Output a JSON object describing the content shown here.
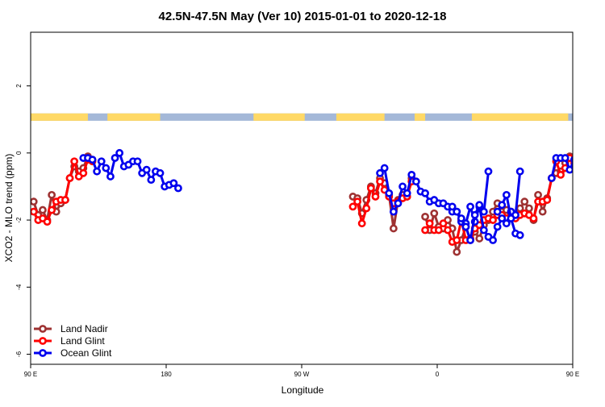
{
  "chart_data": {
    "type": "line",
    "title": "42.5N-47.5N May (Ver 10)   2015-01-01 to 2020-12-18",
    "xlabel": "Longitude",
    "ylabel": "XCO2 - MLO trend (ppm)",
    "xlim": [
      90,
      450
    ],
    "ylim": [
      -6.3,
      3.6
    ],
    "x_ticks": [
      {
        "value": 90,
        "label": "90 E"
      },
      {
        "value": 180,
        "label": "180"
      },
      {
        "value": 270,
        "label": "90 W"
      },
      {
        "value": 360,
        "label": "0"
      },
      {
        "value": 450,
        "label": "90 E"
      }
    ],
    "y_ticks": [
      {
        "value": -6,
        "label": "-6"
      },
      {
        "value": -4,
        "label": "-4"
      },
      {
        "value": -2,
        "label": "-2"
      },
      {
        "value": 0,
        "label": "0"
      },
      {
        "value": 2,
        "label": "2"
      }
    ],
    "legend_position": "bottom-left",
    "series": [
      {
        "name": "Land Nadir",
        "color": "#9e3232",
        "segments": [
          [
            [
              92,
              -1.45
            ],
            [
              95,
              -1.85
            ],
            [
              98,
              -1.7
            ],
            [
              101,
              -2.0
            ],
            [
              104,
              -1.25
            ],
            [
              107,
              -1.75
            ],
            [
              110,
              -1.5
            ],
            [
              113,
              -1.4
            ],
            [
              116,
              -0.75
            ],
            [
              119,
              -0.4
            ],
            [
              122,
              -0.55
            ],
            [
              125,
              -0.45
            ],
            [
              128,
              -0.1
            ],
            [
              131,
              -0.2
            ]
          ],
          [
            [
              304,
              -1.3
            ],
            [
              307,
              -1.35
            ],
            [
              310,
              -1.8
            ],
            [
              313,
              -1.4
            ],
            [
              316,
              -1.0
            ],
            [
              319,
              -1.2
            ],
            [
              322,
              -0.75
            ],
            [
              325,
              -0.9
            ],
            [
              328,
              -1.25
            ],
            [
              331,
              -2.25
            ],
            [
              334,
              -1.4
            ],
            [
              337,
              -1.25
            ],
            [
              340,
              -1.3
            ],
            [
              343,
              -0.75
            ]
          ],
          [
            [
              352,
              -1.9
            ],
            [
              355,
              -2.3
            ],
            [
              358,
              -1.8
            ],
            [
              361,
              -2.2
            ],
            [
              364,
              -2.25
            ],
            [
              367,
              -2.0
            ],
            [
              370,
              -2.25
            ],
            [
              373,
              -2.95
            ],
            [
              376,
              -2.6
            ],
            [
              379,
              -2.2
            ],
            [
              382,
              -2.6
            ],
            [
              385,
              -2.35
            ],
            [
              388,
              -2.55
            ],
            [
              391,
              -2.15
            ],
            [
              394,
              -2.0
            ],
            [
              397,
              -1.75
            ],
            [
              400,
              -1.5
            ],
            [
              403,
              -1.75
            ],
            [
              406,
              -1.7
            ],
            [
              409,
              -1.75
            ],
            [
              412,
              -1.85
            ],
            [
              415,
              -1.65
            ],
            [
              418,
              -1.45
            ],
            [
              421,
              -1.65
            ],
            [
              424,
              -2.0
            ],
            [
              427,
              -1.25
            ],
            [
              430,
              -1.75
            ],
            [
              433,
              -1.35
            ],
            [
              436,
              -0.75
            ],
            [
              439,
              -0.6
            ],
            [
              442,
              -0.55
            ],
            [
              445,
              -0.3
            ],
            [
              448,
              -0.1
            ],
            [
              451,
              -0.45
            ]
          ]
        ]
      },
      {
        "name": "Land Glint",
        "color": "#ff0000",
        "segments": [
          [
            [
              92,
              -1.75
            ],
            [
              95,
              -2.0
            ],
            [
              98,
              -1.95
            ],
            [
              101,
              -2.05
            ],
            [
              104,
              -1.7
            ],
            [
              107,
              -1.45
            ],
            [
              110,
              -1.4
            ],
            [
              113,
              -1.4
            ],
            [
              116,
              -0.75
            ],
            [
              119,
              -0.25
            ],
            [
              122,
              -0.7
            ],
            [
              125,
              -0.6
            ],
            [
              128,
              -0.2
            ],
            [
              131,
              -0.25
            ]
          ],
          [
            [
              304,
              -1.6
            ],
            [
              307,
              -1.45
            ],
            [
              310,
              -2.1
            ],
            [
              313,
              -1.65
            ],
            [
              316,
              -1.05
            ],
            [
              319,
              -1.3
            ],
            [
              322,
              -0.85
            ],
            [
              325,
              -1.1
            ],
            [
              328,
              -1.3
            ],
            [
              331,
              -1.5
            ],
            [
              334,
              -1.45
            ],
            [
              337,
              -1.35
            ],
            [
              340,
              -1.3
            ],
            [
              343,
              -0.85
            ]
          ],
          [
            [
              352,
              -2.3
            ],
            [
              355,
              -2.1
            ],
            [
              358,
              -2.3
            ],
            [
              361,
              -2.3
            ],
            [
              364,
              -2.1
            ],
            [
              367,
              -2.3
            ],
            [
              370,
              -2.65
            ],
            [
              373,
              -2.6
            ],
            [
              376,
              -2.0
            ],
            [
              379,
              -2.6
            ],
            [
              382,
              -2.55
            ],
            [
              385,
              -2.25
            ],
            [
              388,
              -2.15
            ],
            [
              391,
              -2.0
            ],
            [
              394,
              -1.95
            ],
            [
              397,
              -2.0
            ],
            [
              400,
              -1.85
            ],
            [
              403,
              -1.85
            ],
            [
              406,
              -1.95
            ],
            [
              409,
              -1.8
            ],
            [
              412,
              -1.95
            ],
            [
              415,
              -1.85
            ],
            [
              418,
              -1.8
            ],
            [
              421,
              -1.85
            ],
            [
              424,
              -1.95
            ],
            [
              427,
              -1.45
            ],
            [
              430,
              -1.45
            ],
            [
              433,
              -1.4
            ],
            [
              436,
              -0.75
            ],
            [
              439,
              -0.25
            ],
            [
              442,
              -0.65
            ],
            [
              445,
              -0.45
            ],
            [
              448,
              -0.15
            ],
            [
              451,
              -0.3
            ]
          ]
        ]
      },
      {
        "name": "Ocean Glint",
        "color": "#0000ee",
        "segments": [
          [
            [
              125,
              -0.15
            ],
            [
              128,
              -0.15
            ],
            [
              131,
              -0.2
            ],
            [
              134,
              -0.55
            ],
            [
              137,
              -0.25
            ],
            [
              140,
              -0.45
            ],
            [
              143,
              -0.7
            ],
            [
              146,
              -0.15
            ],
            [
              149,
              0.0
            ],
            [
              152,
              -0.4
            ],
            [
              155,
              -0.35
            ],
            [
              158,
              -0.25
            ],
            [
              161,
              -0.25
            ],
            [
              164,
              -0.6
            ],
            [
              167,
              -0.5
            ],
            [
              170,
              -0.8
            ],
            [
              173,
              -0.55
            ],
            [
              176,
              -0.6
            ],
            [
              179,
              -1.0
            ],
            [
              182,
              -0.95
            ],
            [
              185,
              -0.9
            ],
            [
              188,
              -1.05
            ]
          ],
          [
            [
              322,
              -0.6
            ],
            [
              325,
              -0.45
            ],
            [
              328,
              -1.2
            ],
            [
              331,
              -1.75
            ],
            [
              334,
              -1.5
            ],
            [
              337,
              -1.0
            ],
            [
              340,
              -1.2
            ],
            [
              343,
              -0.65
            ],
            [
              346,
              -0.85
            ],
            [
              349,
              -1.15
            ],
            [
              352,
              -1.2
            ],
            [
              355,
              -1.45
            ],
            [
              358,
              -1.4
            ],
            [
              361,
              -1.5
            ],
            [
              364,
              -1.5
            ],
            [
              367,
              -1.6
            ],
            [
              370,
              -1.75
            ],
            [
              373,
              -1.75
            ],
            [
              376,
              -2.05
            ],
            [
              379,
              -2.1
            ],
            [
              382,
              -1.6
            ],
            [
              385,
              -2.05
            ],
            [
              388,
              -1.6
            ],
            [
              391,
              -2.3
            ],
            [
              394,
              -2.5
            ],
            [
              397,
              -2.6
            ],
            [
              400,
              -2.2
            ],
            [
              403,
              -1.95
            ],
            [
              406,
              -2.1
            ],
            [
              409,
              -1.75
            ],
            [
              412,
              -1.85
            ],
            [
              415,
              -0.55
            ]
          ],
          [
            [
              370,
              -1.6
            ],
            [
              373,
              -1.75
            ],
            [
              376,
              -1.95
            ],
            [
              379,
              -2.2
            ],
            [
              382,
              -2.6
            ],
            [
              385,
              -1.85
            ],
            [
              388,
              -1.55
            ],
            [
              391,
              -1.75
            ],
            [
              394,
              -0.55
            ]
          ],
          [
            [
              400,
              -1.75
            ],
            [
              403,
              -1.55
            ],
            [
              406,
              -1.25
            ],
            [
              409,
              -1.95
            ],
            [
              412,
              -2.4
            ],
            [
              415,
              -2.45
            ]
          ],
          [
            [
              436,
              -0.75
            ],
            [
              439,
              -0.15
            ],
            [
              442,
              -0.15
            ],
            [
              445,
              -0.15
            ],
            [
              448,
              -0.5
            ],
            [
              451,
              -0.2
            ],
            [
              454,
              -0.5
            ],
            [
              457,
              -0.7
            ],
            [
              460,
              -0.15
            ],
            [
              463,
              0.0
            ],
            [
              466,
              -0.4
            ]
          ]
        ]
      }
    ]
  },
  "band": {
    "y_top": 1.18,
    "y_bottom": 0.96,
    "land_color": "#ffd966",
    "ocean_color": "#a4b8d8",
    "land_ranges": [
      [
        90,
        128
      ],
      [
        141,
        176
      ],
      [
        238,
        272
      ],
      [
        293,
        325
      ],
      [
        345,
        352
      ],
      [
        383,
        447
      ]
    ]
  }
}
